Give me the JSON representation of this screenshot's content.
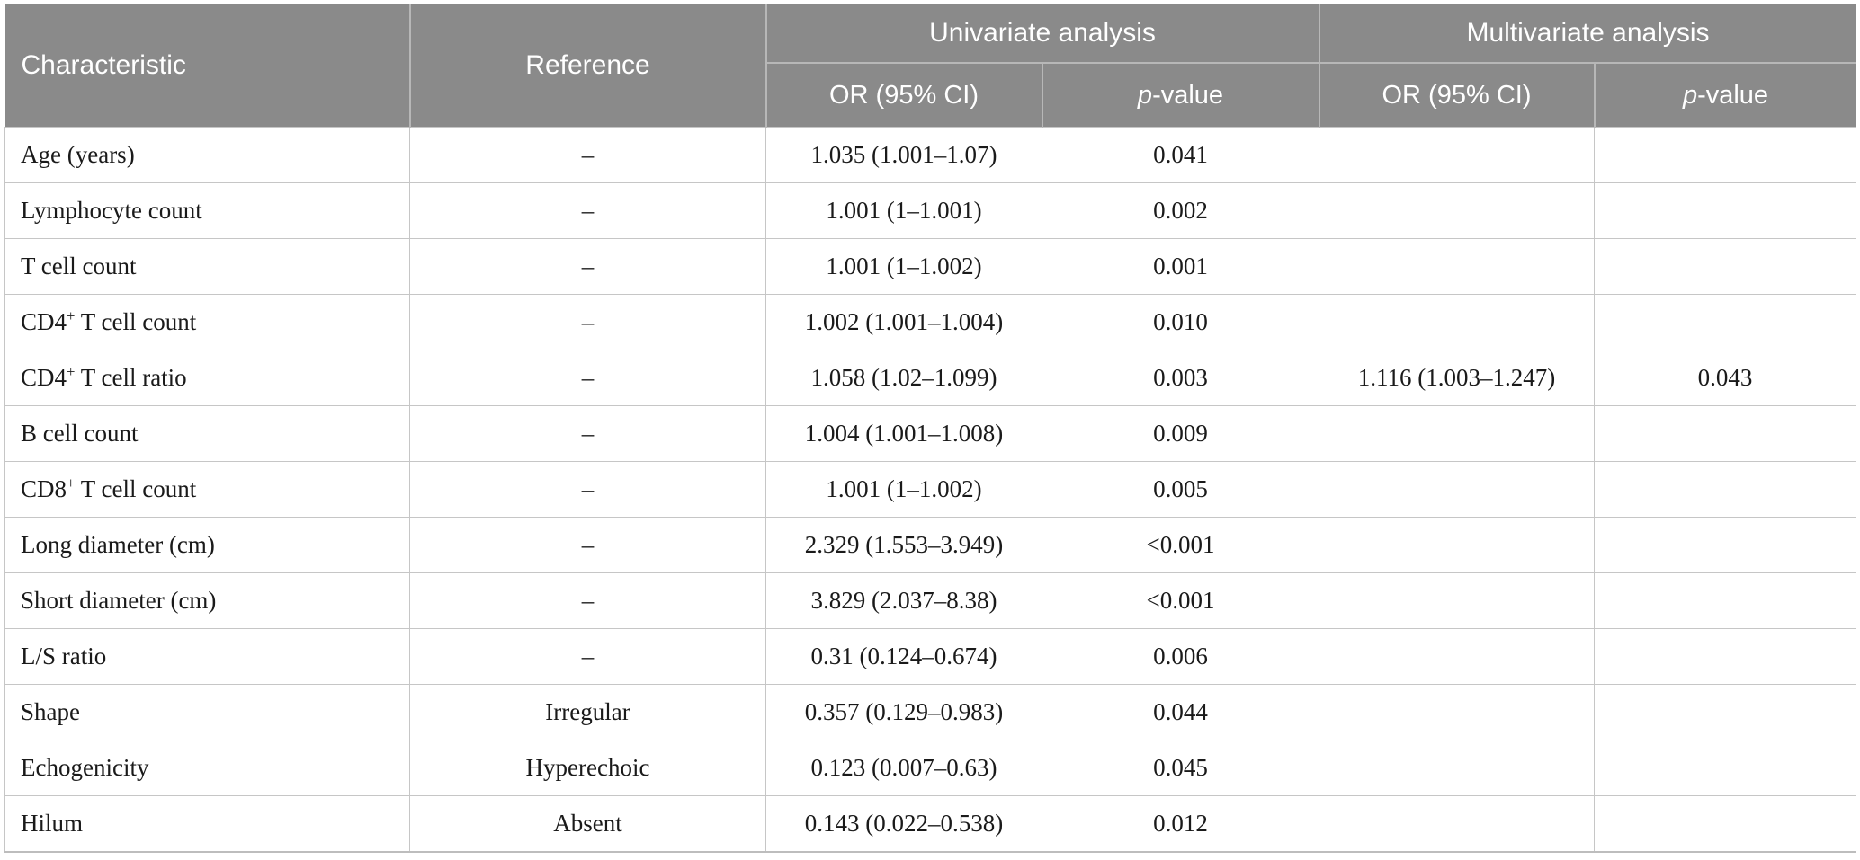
{
  "colors": {
    "header_bg": "#8a8a8a",
    "header_text": "#ffffff",
    "header_divider": "#b7b7b7",
    "body_border": "#c6c6c6",
    "body_text": "#1a1a1a"
  },
  "header": {
    "characteristic": "Characteristic",
    "reference": "Reference",
    "univariate_group": "Univariate analysis",
    "multivariate_group": "Multivariate analysis",
    "or_label": "OR (95% CI)",
    "p_italic": "p",
    "p_rest": "-value"
  },
  "rows": [
    {
      "char_main": "Age (years)",
      "char_sup": "",
      "char_rest": "",
      "reference": "–",
      "uni_or": "1.035 (1.001–1.07)",
      "uni_p": "0.041",
      "multi_or": "",
      "multi_p": ""
    },
    {
      "char_main": "Lymphocyte count",
      "char_sup": "",
      "char_rest": "",
      "reference": "–",
      "uni_or": "1.001 (1–1.001)",
      "uni_p": "0.002",
      "multi_or": "",
      "multi_p": ""
    },
    {
      "char_main": "T cell count",
      "char_sup": "",
      "char_rest": "",
      "reference": "–",
      "uni_or": "1.001 (1–1.002)",
      "uni_p": "0.001",
      "multi_or": "",
      "multi_p": ""
    },
    {
      "char_main": "CD4",
      "char_sup": "+",
      "char_rest": " T cell count",
      "reference": "–",
      "uni_or": "1.002 (1.001–1.004)",
      "uni_p": "0.010",
      "multi_or": "",
      "multi_p": ""
    },
    {
      "char_main": "CD4",
      "char_sup": "+",
      "char_rest": " T cell ratio",
      "reference": "–",
      "uni_or": "1.058 (1.02–1.099)",
      "uni_p": "0.003",
      "multi_or": "1.116 (1.003–1.247)",
      "multi_p": "0.043"
    },
    {
      "char_main": "B cell count",
      "char_sup": "",
      "char_rest": "",
      "reference": "–",
      "uni_or": "1.004 (1.001–1.008)",
      "uni_p": "0.009",
      "multi_or": "",
      "multi_p": ""
    },
    {
      "char_main": "CD8",
      "char_sup": "+",
      "char_rest": " T cell count",
      "reference": "–",
      "uni_or": "1.001 (1–1.002)",
      "uni_p": "0.005",
      "multi_or": "",
      "multi_p": ""
    },
    {
      "char_main": "Long diameter (cm)",
      "char_sup": "",
      "char_rest": "",
      "reference": "–",
      "uni_or": "2.329 (1.553–3.949)",
      "uni_p": "<0.001",
      "multi_or": "",
      "multi_p": ""
    },
    {
      "char_main": "Short diameter (cm)",
      "char_sup": "",
      "char_rest": "",
      "reference": "–",
      "uni_or": "3.829 (2.037–8.38)",
      "uni_p": "<0.001",
      "multi_or": "",
      "multi_p": ""
    },
    {
      "char_main": "L/S ratio",
      "char_sup": "",
      "char_rest": "",
      "reference": "–",
      "uni_or": "0.31 (0.124–0.674)",
      "uni_p": "0.006",
      "multi_or": "",
      "multi_p": ""
    },
    {
      "char_main": "Shape",
      "char_sup": "",
      "char_rest": "",
      "reference": "Irregular",
      "uni_or": "0.357 (0.129–0.983)",
      "uni_p": "0.044",
      "multi_or": "",
      "multi_p": ""
    },
    {
      "char_main": "Echogenicity",
      "char_sup": "",
      "char_rest": "",
      "reference": "Hyperechoic",
      "uni_or": "0.123 (0.007–0.63)",
      "uni_p": "0.045",
      "multi_or": "",
      "multi_p": ""
    },
    {
      "char_main": "Hilum",
      "char_sup": "",
      "char_rest": "",
      "reference": "Absent",
      "uni_or": "0.143 (0.022–0.538)",
      "uni_p": "0.012",
      "multi_or": "",
      "multi_p": ""
    }
  ]
}
